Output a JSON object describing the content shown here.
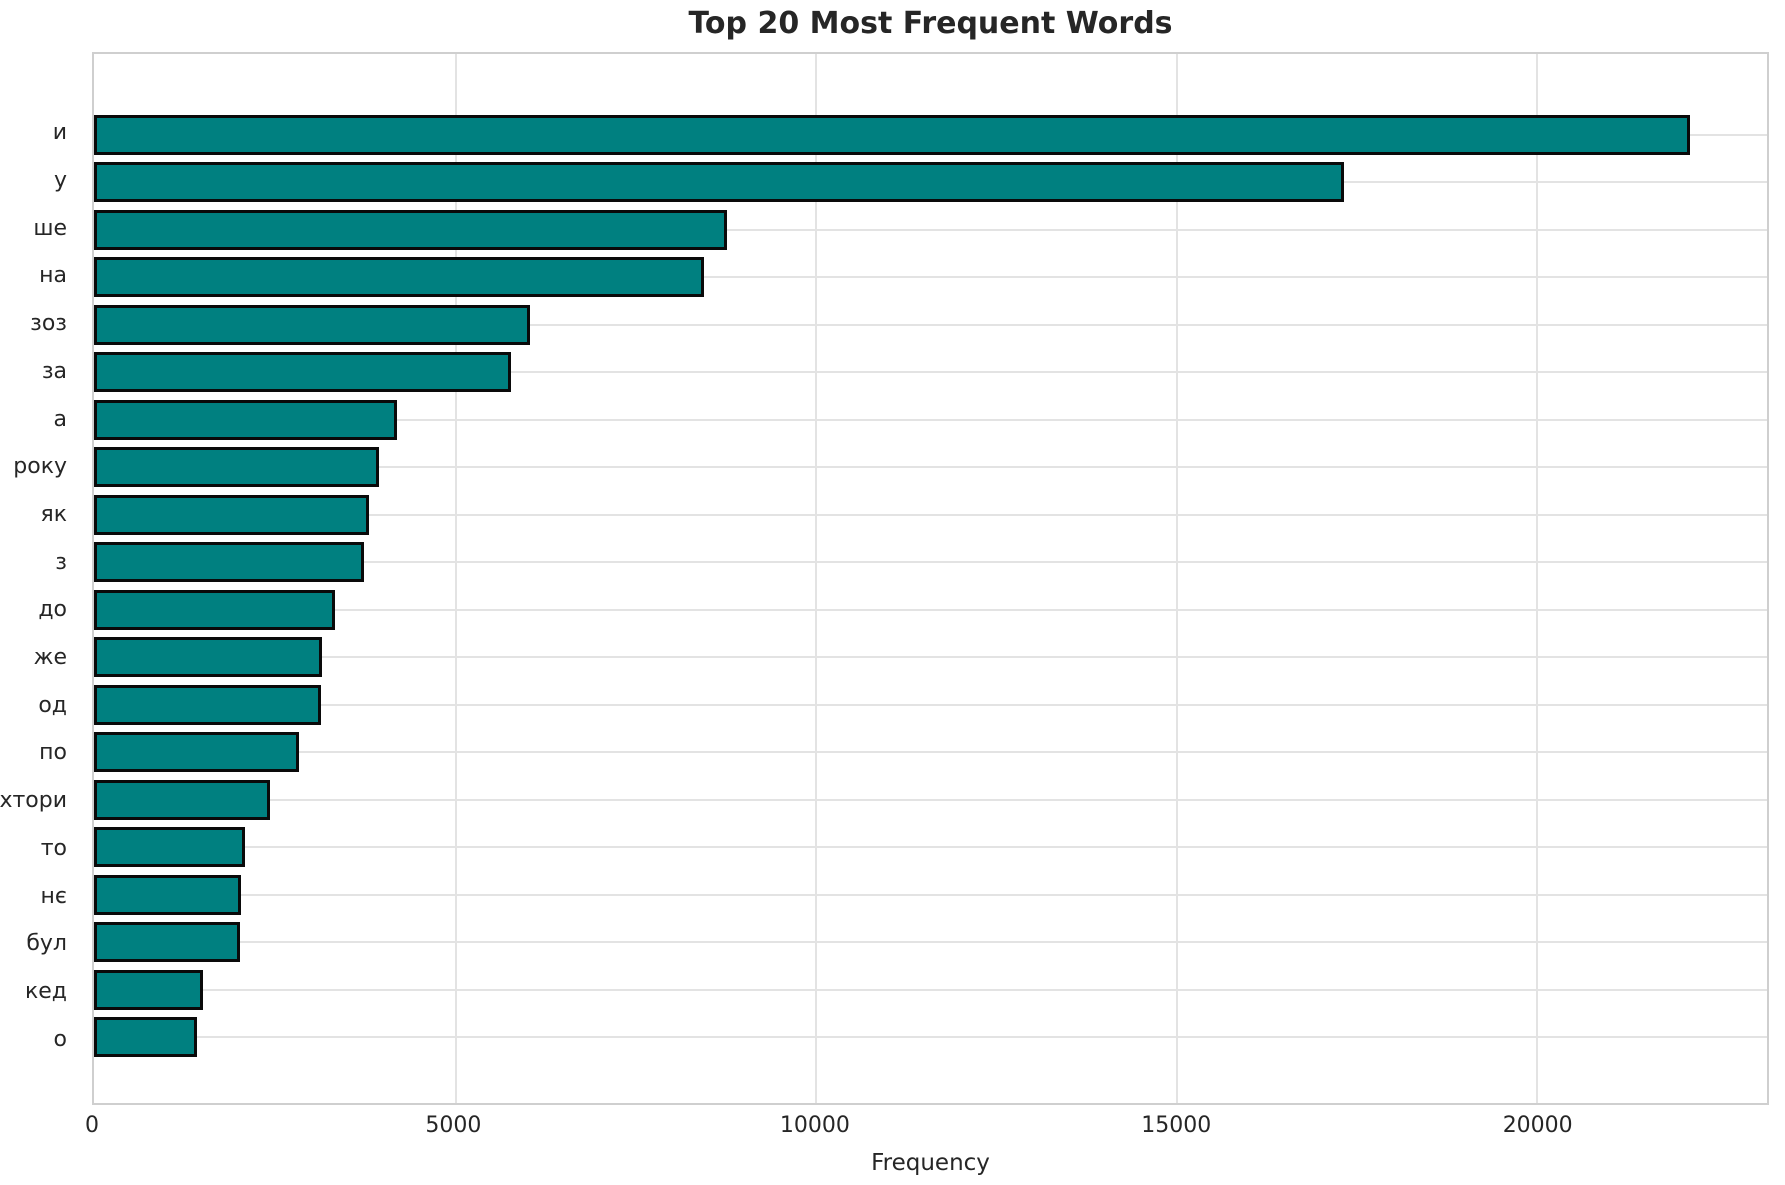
{
  "chart_data": {
    "type": "bar",
    "orientation": "horizontal",
    "title": "Top 20 Most Frequent Words",
    "xlabel": "Frequency",
    "ylabel": "",
    "categories": [
      "и",
      "у",
      "ше",
      "на",
      "зоз",
      "за",
      "а",
      "року",
      "як",
      "з",
      "до",
      "же",
      "од",
      "по",
      "хтори",
      "то",
      "нє",
      "бул",
      "кед",
      "о"
    ],
    "values": [
      22130,
      17330,
      8780,
      8460,
      6050,
      5780,
      4200,
      3950,
      3820,
      3750,
      3340,
      3160,
      3150,
      2840,
      2440,
      2100,
      2040,
      2020,
      1510,
      1430
    ],
    "xlim": [
      0,
      23200
    ],
    "xticks": [
      0,
      5000,
      10000,
      15000,
      20000
    ],
    "grid": true,
    "legend_position": "none",
    "colors": {
      "bar_fill": "#008080",
      "bar_edge": "#0a0a0a",
      "grid_line": "#e3e3e3",
      "axis_edge": "#cfcfcf",
      "text": "#262626"
    }
  }
}
